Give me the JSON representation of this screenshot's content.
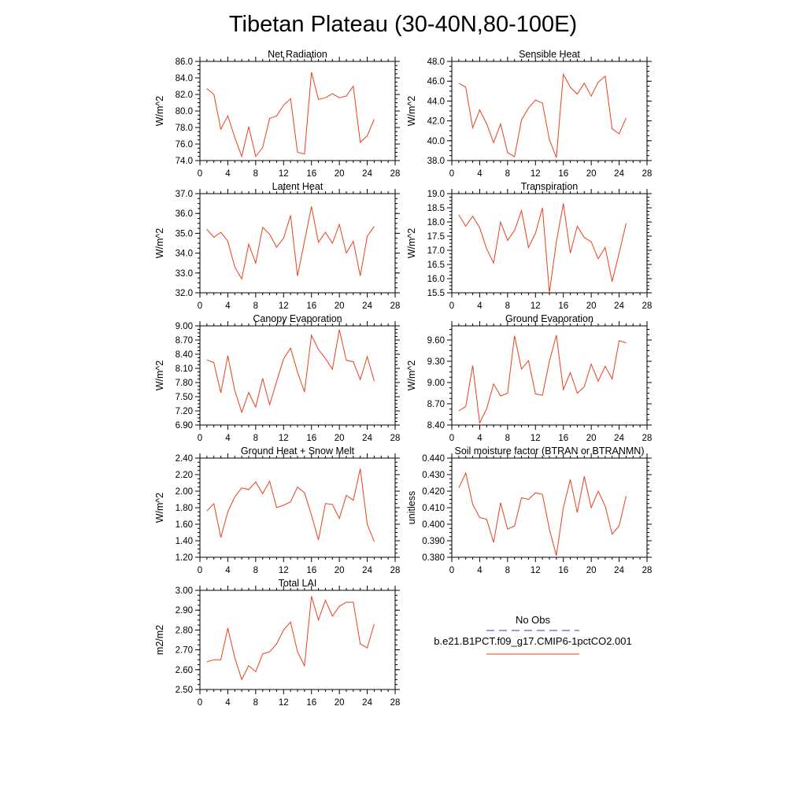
{
  "figure": {
    "title": "Tibetan Plateau (30-40N,80-100E)"
  },
  "legend": {
    "entries": [
      {
        "label": "No Obs",
        "color": "#3a3a8c",
        "dashed": true
      },
      {
        "label": "b.e21.B1PCT.f09_g17.CMIP6-1pctCO2.001",
        "color": "#e8401c",
        "dashed": false
      }
    ]
  },
  "chart_data": [
    {
      "type": "line",
      "title": "Net Radiation",
      "ylabel": "W/m^2",
      "xlim": [
        0,
        28
      ],
      "ylim": [
        74.0,
        86.0
      ],
      "xticks": [
        0,
        4,
        8,
        12,
        16,
        20,
        24,
        28
      ],
      "yticks": [
        74.0,
        76.0,
        78.0,
        80.0,
        82.0,
        84.0,
        86.0
      ],
      "ytick_decimals": 1,
      "x": [
        1,
        2,
        3,
        4,
        5,
        6,
        7,
        8,
        9,
        10,
        11,
        12,
        13,
        14,
        15,
        16,
        17,
        18,
        19,
        20,
        21,
        22,
        23,
        24,
        25
      ],
      "series": [
        {
          "name": "b.e21.B1PCT.f09_g17.CMIP6-1pctCO2.001",
          "color": "#e8401c",
          "values": [
            82.7,
            82.0,
            77.8,
            79.4,
            76.8,
            74.5,
            78.1,
            74.5,
            75.6,
            79.1,
            79.4,
            80.7,
            81.5,
            75.0,
            74.8,
            84.7,
            81.4,
            81.6,
            82.1,
            81.6,
            81.8,
            83.0,
            76.2,
            77.0,
            79.0
          ]
        }
      ]
    },
    {
      "type": "line",
      "title": "Sensible Heat",
      "ylabel": "W/m^2",
      "xlim": [
        0,
        28
      ],
      "ylim": [
        38.0,
        48.0
      ],
      "xticks": [
        0,
        4,
        8,
        12,
        16,
        20,
        24,
        28
      ],
      "yticks": [
        38.0,
        40.0,
        42.0,
        44.0,
        46.0,
        48.0
      ],
      "ytick_decimals": 1,
      "x": [
        1,
        2,
        3,
        4,
        5,
        6,
        7,
        8,
        9,
        10,
        11,
        12,
        13,
        14,
        15,
        16,
        17,
        18,
        19,
        20,
        21,
        22,
        23,
        24,
        25
      ],
      "series": [
        {
          "name": "b.e21.B1PCT.f09_g17.CMIP6-1pctCO2.001",
          "color": "#e8401c",
          "values": [
            45.8,
            45.4,
            41.3,
            43.1,
            41.7,
            39.8,
            41.7,
            38.8,
            38.4,
            42.1,
            43.3,
            44.1,
            43.8,
            40.1,
            38.3,
            46.7,
            45.4,
            44.7,
            45.8,
            44.5,
            45.9,
            46.5,
            41.2,
            40.7,
            42.3
          ]
        }
      ]
    },
    {
      "type": "line",
      "title": "Latent Heat",
      "ylabel": "W/m^2",
      "xlim": [
        0,
        28
      ],
      "ylim": [
        32.0,
        37.0
      ],
      "xticks": [
        0,
        4,
        8,
        12,
        16,
        20,
        24,
        28
      ],
      "yticks": [
        32.0,
        33.0,
        34.0,
        35.0,
        36.0,
        37.0
      ],
      "ytick_decimals": 1,
      "x": [
        1,
        2,
        3,
        4,
        5,
        6,
        7,
        8,
        9,
        10,
        11,
        12,
        13,
        14,
        15,
        16,
        17,
        18,
        19,
        20,
        21,
        22,
        23,
        24,
        25
      ],
      "series": [
        {
          "name": "b.e21.B1PCT.f09_g17.CMIP6-1pctCO2.001",
          "color": "#e8401c",
          "values": [
            35.2,
            34.8,
            35.05,
            34.6,
            33.3,
            32.7,
            34.45,
            33.5,
            35.3,
            34.95,
            34.3,
            34.75,
            35.9,
            32.85,
            34.6,
            36.35,
            34.55,
            35.05,
            34.5,
            35.45,
            34.0,
            34.6,
            32.85,
            34.85,
            35.35
          ]
        }
      ]
    },
    {
      "type": "line",
      "title": "Transpiration",
      "ylabel": "W/m^2",
      "xlim": [
        0,
        28
      ],
      "ylim": [
        15.5,
        19.0
      ],
      "xticks": [
        0,
        4,
        8,
        12,
        16,
        20,
        24,
        28
      ],
      "yticks": [
        15.5,
        16.0,
        16.5,
        17.0,
        17.5,
        18.0,
        18.5,
        19.0
      ],
      "ytick_decimals": 1,
      "x": [
        1,
        2,
        3,
        4,
        5,
        6,
        7,
        8,
        9,
        10,
        11,
        12,
        13,
        14,
        15,
        16,
        17,
        18,
        19,
        20,
        21,
        22,
        23,
        24,
        25
      ],
      "series": [
        {
          "name": "b.e21.B1PCT.f09_g17.CMIP6-1pctCO2.001",
          "color": "#e8401c",
          "values": [
            18.25,
            17.85,
            18.2,
            17.8,
            17.05,
            16.55,
            18.0,
            17.35,
            17.7,
            18.4,
            17.1,
            17.6,
            18.5,
            15.5,
            17.3,
            18.65,
            16.9,
            17.85,
            17.45,
            17.3,
            16.7,
            17.1,
            15.9,
            16.9,
            17.95
          ]
        }
      ]
    },
    {
      "type": "line",
      "title": "Canopy Evaporation",
      "ylabel": "W/m^2",
      "xlim": [
        0,
        28
      ],
      "ylim": [
        6.9,
        9.0
      ],
      "xticks": [
        0,
        4,
        8,
        12,
        16,
        20,
        24,
        28
      ],
      "yticks": [
        6.9,
        7.2,
        7.5,
        7.8,
        8.1,
        8.4,
        8.7,
        9.0
      ],
      "ytick_decimals": 2,
      "x": [
        1,
        2,
        3,
        4,
        5,
        6,
        7,
        8,
        9,
        10,
        11,
        12,
        13,
        14,
        15,
        16,
        17,
        18,
        19,
        20,
        21,
        22,
        23,
        24,
        25
      ],
      "series": [
        {
          "name": "b.e21.B1PCT.f09_g17.CMIP6-1pctCO2.001",
          "color": "#e8401c",
          "values": [
            8.28,
            8.22,
            7.58,
            8.37,
            7.63,
            7.17,
            7.59,
            7.28,
            7.89,
            7.33,
            7.82,
            8.3,
            8.53,
            8.02,
            7.6,
            8.8,
            8.5,
            8.31,
            8.08,
            8.92,
            8.27,
            8.24,
            7.86,
            8.35,
            7.83
          ]
        }
      ]
    },
    {
      "type": "line",
      "title": "Ground Evaporation",
      "ylabel": "W/m^2",
      "xlim": [
        0,
        28
      ],
      "ylim": [
        8.4,
        9.8
      ],
      "xticks": [
        0,
        4,
        8,
        12,
        16,
        20,
        24,
        28
      ],
      "yticks": [
        8.4,
        8.7,
        9.0,
        9.3,
        9.6
      ],
      "ytick_decimals": 2,
      "x": [
        1,
        2,
        3,
        4,
        5,
        6,
        7,
        8,
        9,
        10,
        11,
        12,
        13,
        14,
        15,
        16,
        17,
        18,
        19,
        20,
        21,
        22,
        23,
        24,
        25
      ],
      "series": [
        {
          "name": "b.e21.B1PCT.f09_g17.CMIP6-1pctCO2.001",
          "color": "#e8401c",
          "values": [
            8.6,
            8.66,
            9.24,
            8.43,
            8.63,
            8.98,
            8.81,
            8.85,
            9.66,
            9.19,
            9.31,
            8.84,
            8.82,
            9.3,
            9.67,
            8.9,
            9.14,
            8.85,
            8.94,
            9.26,
            9.02,
            9.23,
            9.05,
            9.59,
            9.56
          ]
        }
      ]
    },
    {
      "type": "line",
      "title": "Ground Heat + Snow Melt",
      "ylabel": "W/m^2",
      "xlim": [
        0,
        28
      ],
      "ylim": [
        1.2,
        2.4
      ],
      "xticks": [
        0,
        4,
        8,
        12,
        16,
        20,
        24,
        28
      ],
      "yticks": [
        1.2,
        1.4,
        1.6,
        1.8,
        2.0,
        2.2,
        2.4
      ],
      "ytick_decimals": 2,
      "x": [
        1,
        2,
        3,
        4,
        5,
        6,
        7,
        8,
        9,
        10,
        11,
        12,
        13,
        14,
        15,
        16,
        17,
        18,
        19,
        20,
        21,
        22,
        23,
        24,
        25
      ],
      "series": [
        {
          "name": "b.e21.B1PCT.f09_g17.CMIP6-1pctCO2.001",
          "color": "#e8401c",
          "values": [
            1.76,
            1.85,
            1.44,
            1.75,
            1.93,
            2.04,
            2.02,
            2.11,
            1.97,
            2.12,
            1.8,
            1.83,
            1.87,
            2.05,
            1.98,
            1.71,
            1.41,
            1.85,
            1.84,
            1.67,
            1.95,
            1.89,
            2.27,
            1.6,
            1.39
          ]
        }
      ]
    },
    {
      "type": "line",
      "title": "Soil moisture factor (BTRAN or BTRANMN)",
      "ylabel": "unitless",
      "xlim": [
        0,
        28
      ],
      "ylim": [
        0.38,
        0.44
      ],
      "xticks": [
        0,
        4,
        8,
        12,
        16,
        20,
        24,
        28
      ],
      "yticks": [
        0.38,
        0.39,
        0.4,
        0.41,
        0.42,
        0.43,
        0.44
      ],
      "ytick_decimals": 3,
      "x": [
        1,
        2,
        3,
        4,
        5,
        6,
        7,
        8,
        9,
        10,
        11,
        12,
        13,
        14,
        15,
        16,
        17,
        18,
        19,
        20,
        21,
        22,
        23,
        24,
        25
      ],
      "series": [
        {
          "name": "b.e21.B1PCT.f09_g17.CMIP6-1pctCO2.001",
          "color": "#e8401c",
          "values": [
            0.422,
            0.431,
            0.412,
            0.404,
            0.403,
            0.389,
            0.413,
            0.397,
            0.399,
            0.416,
            0.415,
            0.419,
            0.418,
            0.397,
            0.381,
            0.41,
            0.427,
            0.407,
            0.429,
            0.41,
            0.42,
            0.411,
            0.394,
            0.399,
            0.417
          ]
        }
      ]
    },
    {
      "type": "line",
      "title": "Total LAI",
      "ylabel": "m2/m2",
      "xlim": [
        0,
        28
      ],
      "ylim": [
        2.5,
        3.0
      ],
      "xticks": [
        0,
        4,
        8,
        12,
        16,
        20,
        24,
        28
      ],
      "yticks": [
        2.5,
        2.6,
        2.7,
        2.8,
        2.9,
        3.0
      ],
      "ytick_decimals": 2,
      "x": [
        1,
        2,
        3,
        4,
        5,
        6,
        7,
        8,
        9,
        10,
        11,
        12,
        13,
        14,
        15,
        16,
        17,
        18,
        19,
        20,
        21,
        22,
        23,
        24,
        25
      ],
      "series": [
        {
          "name": "b.e21.B1PCT.f09_g17.CMIP6-1pctCO2.001",
          "color": "#e8401c",
          "values": [
            2.64,
            2.65,
            2.65,
            2.81,
            2.66,
            2.55,
            2.62,
            2.59,
            2.68,
            2.69,
            2.73,
            2.8,
            2.84,
            2.69,
            2.62,
            2.97,
            2.85,
            2.95,
            2.87,
            2.92,
            2.94,
            2.94,
            2.73,
            2.71,
            2.83
          ]
        }
      ]
    }
  ]
}
